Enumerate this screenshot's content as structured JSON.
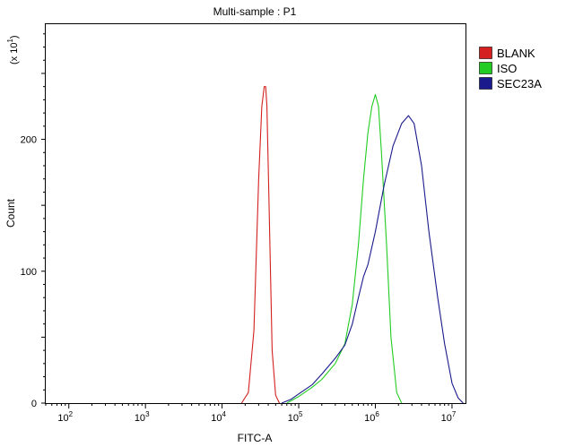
{
  "chart_data": {
    "type": "area",
    "title": "Multi-sample : P1",
    "xlabel": "FITC-A",
    "ylabel": "Count",
    "y_multiplier_label": "(x 10",
    "y_multiplier_exp": "1",
    "x_scale": "log",
    "xlim": [
      50,
      15000000
    ],
    "ylim": [
      0,
      288
    ],
    "x_ticks": [
      {
        "value": 100,
        "base": "10",
        "exp": "2"
      },
      {
        "value": 1000,
        "base": "10",
        "exp": "3"
      },
      {
        "value": 10000,
        "base": "10",
        "exp": "4"
      },
      {
        "value": 100000,
        "base": "10",
        "exp": "5"
      },
      {
        "value": 1000000,
        "base": "10",
        "exp": "6"
      },
      {
        "value": 10000000,
        "base": "10",
        "exp": "7"
      }
    ],
    "y_ticks": [
      0,
      100,
      200
    ],
    "grid": false,
    "legend_position": "top-right",
    "series": [
      {
        "name": "BLANK",
        "color": "#d42020",
        "x": [
          18000,
          22000,
          26000,
          30000,
          33000,
          35500,
          37000,
          38500,
          41000,
          45000,
          50000,
          56000
        ],
        "y": [
          0,
          8,
          55,
          170,
          225,
          240,
          240,
          225,
          150,
          40,
          6,
          0
        ]
      },
      {
        "name": "ISO",
        "color": "#22cc22",
        "x": [
          70000,
          100000,
          150000,
          200000,
          300000,
          400000,
          500000,
          600000,
          700000,
          800000,
          900000,
          1000000,
          1100000,
          1200000,
          1400000,
          1600000,
          1900000,
          2200000
        ],
        "y": [
          0,
          5,
          12,
          18,
          30,
          45,
          75,
          120,
          170,
          205,
          225,
          234,
          225,
          190,
          120,
          50,
          8,
          0
        ]
      },
      {
        "name": "SEC23A",
        "color": "#1a1a8c",
        "x": [
          60000,
          80000,
          100000,
          150000,
          200000,
          300000,
          400000,
          500000,
          600000,
          700000,
          800000,
          1000000,
          1300000,
          1700000,
          2200000,
          2700000,
          3200000,
          4000000,
          5000000,
          6500000,
          8000000,
          10000000,
          12000000,
          14000000
        ],
        "y": [
          0,
          3,
          7,
          14,
          22,
          34,
          44,
          60,
          80,
          96,
          105,
          130,
          165,
          195,
          212,
          218,
          212,
          180,
          130,
          80,
          45,
          15,
          4,
          0
        ]
      }
    ]
  }
}
